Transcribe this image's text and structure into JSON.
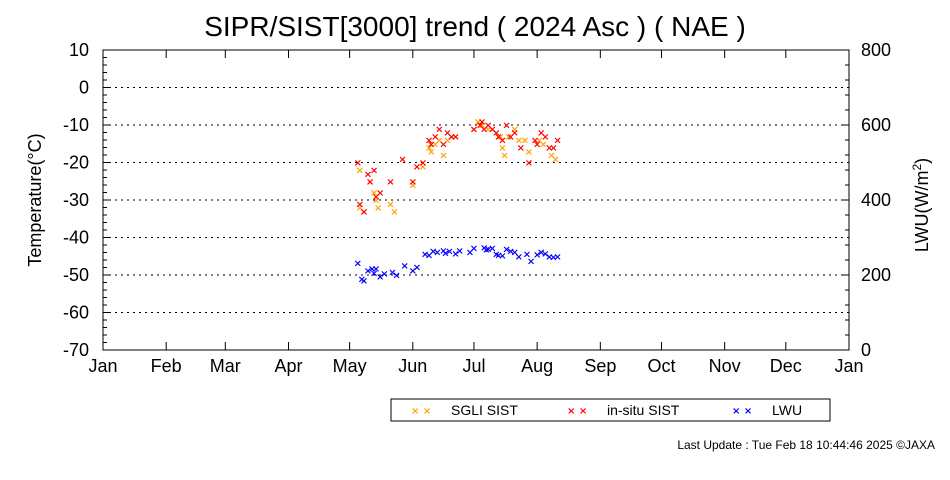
{
  "chart_data": {
    "type": "scatter",
    "title": "SIPR/SIST[3000] trend ( 2024 Asc ) ( NAE )",
    "ylabel": "Temperature(°C)",
    "y2label_main": "LWU(W/m",
    "y2label_sup": "2",
    "y2label_end": ")",
    "ylim": [
      -70,
      10
    ],
    "y2lim": [
      0,
      800
    ],
    "yticks": [
      "10",
      "0",
      "-10",
      "-20",
      "-30",
      "-40",
      "-50",
      "-60",
      "-70"
    ],
    "y2ticks": [
      "800",
      "600",
      "400",
      "200",
      "0"
    ],
    "xticks": [
      "Jan",
      "Feb",
      "Mar",
      "Apr",
      "May",
      "Jun",
      "Jul",
      "Aug",
      "Sep",
      "Oct",
      "Nov",
      "Dec",
      "Jan"
    ],
    "grid": "dotted horizontal",
    "legend_position": "bottom-right",
    "series": [
      {
        "name": "SGLI SIST",
        "color": "#ffa500",
        "axis": "left",
        "points": [
          [
            "2024-05-06",
            -32
          ],
          [
            "2024-05-06",
            -22
          ],
          [
            "2024-05-08",
            -33
          ],
          [
            "2024-05-11",
            -25
          ],
          [
            "2024-05-13",
            -28
          ],
          [
            "2024-05-14",
            -30
          ],
          [
            "2024-05-15",
            -32
          ],
          [
            "2024-05-21",
            -31
          ],
          [
            "2024-05-23",
            -33
          ],
          [
            "2024-06-01",
            -26
          ],
          [
            "2024-06-06",
            -21
          ],
          [
            "2024-06-09",
            -16
          ],
          [
            "2024-06-10",
            -17
          ],
          [
            "2024-06-12",
            -15
          ],
          [
            "2024-06-14",
            -14
          ],
          [
            "2024-06-16",
            -18
          ],
          [
            "2024-06-18",
            -14
          ],
          [
            "2024-06-20",
            -13
          ],
          [
            "2024-06-22",
            -13
          ],
          [
            "2024-07-01",
            -11
          ],
          [
            "2024-07-03",
            -9
          ],
          [
            "2024-07-05",
            -10
          ],
          [
            "2024-07-08",
            -11
          ],
          [
            "2024-07-10",
            -11
          ],
          [
            "2024-07-14",
            -13
          ],
          [
            "2024-07-15",
            -16
          ],
          [
            "2024-07-16",
            -18
          ],
          [
            "2024-07-18",
            -13
          ],
          [
            "2024-07-21",
            -11
          ],
          [
            "2024-07-23",
            -14
          ],
          [
            "2024-07-26",
            -14
          ],
          [
            "2024-07-28",
            -17
          ],
          [
            "2024-08-02",
            -14
          ],
          [
            "2024-08-04",
            -15
          ],
          [
            "2024-08-08",
            -18
          ],
          [
            "2024-08-10",
            -19
          ]
        ]
      },
      {
        "name": "in-situ SIST",
        "color": "#ff0000",
        "axis": "left",
        "points": [
          [
            "2024-05-05",
            -20
          ],
          [
            "2024-05-06",
            -31
          ],
          [
            "2024-05-08",
            -33
          ],
          [
            "2024-05-10",
            -23
          ],
          [
            "2024-05-11",
            -25
          ],
          [
            "2024-05-13",
            -22
          ],
          [
            "2024-05-14",
            -29
          ],
          [
            "2024-05-16",
            -28
          ],
          [
            "2024-05-21",
            -25
          ],
          [
            "2024-05-27",
            -19
          ],
          [
            "2024-06-01",
            -25
          ],
          [
            "2024-06-03",
            -21
          ],
          [
            "2024-06-06",
            -20
          ],
          [
            "2024-06-09",
            -14
          ],
          [
            "2024-06-10",
            -15
          ],
          [
            "2024-06-12",
            -13
          ],
          [
            "2024-06-14",
            -11
          ],
          [
            "2024-06-16",
            -15
          ],
          [
            "2024-06-18",
            -12
          ],
          [
            "2024-06-20",
            -13
          ],
          [
            "2024-06-22",
            -13
          ],
          [
            "2024-07-01",
            -11
          ],
          [
            "2024-07-04",
            -10
          ],
          [
            "2024-07-05",
            -9
          ],
          [
            "2024-07-06",
            -11
          ],
          [
            "2024-07-08",
            -10
          ],
          [
            "2024-07-10",
            -11
          ],
          [
            "2024-07-12",
            -12
          ],
          [
            "2024-07-13",
            -13
          ],
          [
            "2024-07-15",
            -14
          ],
          [
            "2024-07-17",
            -10
          ],
          [
            "2024-07-19",
            -13
          ],
          [
            "2024-07-21",
            -12
          ],
          [
            "2024-07-24",
            -16
          ],
          [
            "2024-07-28",
            -20
          ],
          [
            "2024-07-31",
            -14
          ],
          [
            "2024-08-01",
            -15
          ],
          [
            "2024-08-03",
            -12
          ],
          [
            "2024-08-05",
            -13
          ],
          [
            "2024-08-07",
            -16
          ],
          [
            "2024-08-09",
            -16
          ],
          [
            "2024-08-11",
            -14
          ]
        ]
      },
      {
        "name": "LWU",
        "color": "#0000ff",
        "axis": "right",
        "points": [
          [
            "2024-05-05",
            232
          ],
          [
            "2024-05-07",
            190
          ],
          [
            "2024-05-08",
            186
          ],
          [
            "2024-05-10",
            212
          ],
          [
            "2024-05-12",
            217
          ],
          [
            "2024-05-13",
            205
          ],
          [
            "2024-05-14",
            218
          ],
          [
            "2024-05-16",
            196
          ],
          [
            "2024-05-18",
            204
          ],
          [
            "2024-05-22",
            208
          ],
          [
            "2024-05-24",
            200
          ],
          [
            "2024-05-28",
            226
          ],
          [
            "2024-06-01",
            212
          ],
          [
            "2024-06-03",
            222
          ],
          [
            "2024-06-07",
            256
          ],
          [
            "2024-06-09",
            254
          ],
          [
            "2024-06-11",
            264
          ],
          [
            "2024-06-13",
            261
          ],
          [
            "2024-06-16",
            265
          ],
          [
            "2024-06-17",
            259
          ],
          [
            "2024-06-19",
            264
          ],
          [
            "2024-06-22",
            258
          ],
          [
            "2024-06-24",
            266
          ],
          [
            "2024-06-29",
            262
          ],
          [
            "2024-07-01",
            272
          ],
          [
            "2024-07-06",
            274
          ],
          [
            "2024-07-07",
            268
          ],
          [
            "2024-07-08",
            270
          ],
          [
            "2024-07-10",
            272
          ],
          [
            "2024-07-12",
            256
          ],
          [
            "2024-07-13",
            253
          ],
          [
            "2024-07-15",
            252
          ],
          [
            "2024-07-17",
            270
          ],
          [
            "2024-07-19",
            264
          ],
          [
            "2024-07-21",
            262
          ],
          [
            "2024-07-23",
            249
          ],
          [
            "2024-07-27",
            256
          ],
          [
            "2024-07-29",
            238
          ],
          [
            "2024-08-01",
            255
          ],
          [
            "2024-08-03",
            262
          ],
          [
            "2024-08-05",
            258
          ],
          [
            "2024-08-07",
            250
          ],
          [
            "2024-08-09",
            248
          ],
          [
            "2024-08-11",
            250
          ]
        ]
      }
    ],
    "legend": [
      {
        "label": "SGLI SIST",
        "color": "#ffa500"
      },
      {
        "label": "in-situ SIST",
        "color": "#ff0000"
      },
      {
        "label": "LWU",
        "color": "#0000ff"
      }
    ],
    "footer": "Last Update : Tue Feb 18 10:44:46 2025  ©JAXA"
  }
}
